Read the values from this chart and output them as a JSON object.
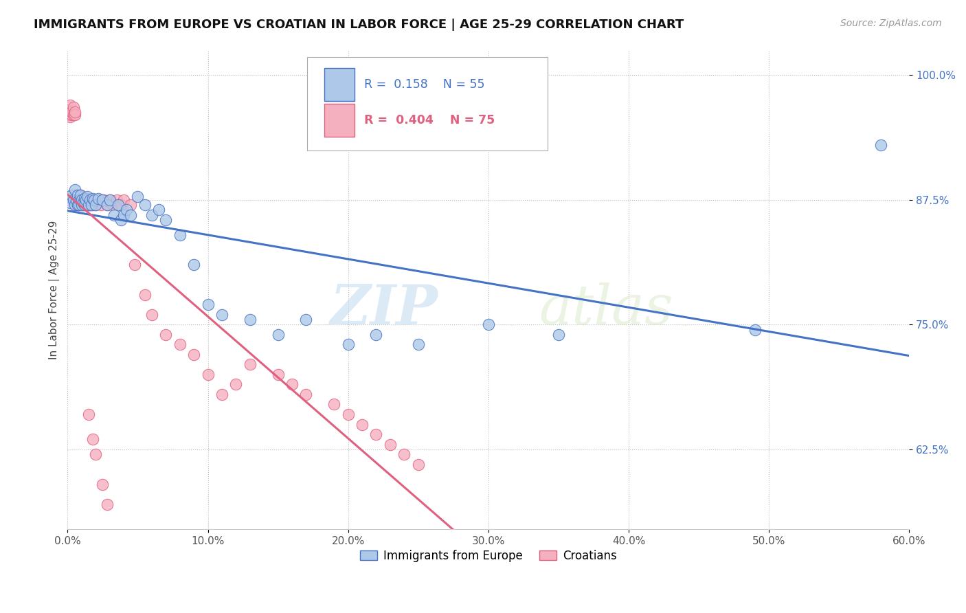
{
  "title": "IMMIGRANTS FROM EUROPE VS CROATIAN IN LABOR FORCE | AGE 25-29 CORRELATION CHART",
  "source": "Source: ZipAtlas.com",
  "ylabel": "In Labor Force | Age 25-29",
  "legend_blue_label": "Immigrants from Europe",
  "legend_pink_label": "Croatians",
  "legend_blue_r": "0.158",
  "legend_blue_n": "55",
  "legend_pink_r": "0.404",
  "legend_pink_n": "75",
  "blue_color": "#adc8e8",
  "pink_color": "#f5b0c0",
  "blue_line_color": "#4472c4",
  "pink_line_color": "#e06080",
  "watermark_zip": "ZIP",
  "watermark_atlas": "atlas",
  "xmin": 0.0,
  "xmax": 0.6,
  "ymin": 0.545,
  "ymax": 1.025,
  "ytick_vals": [
    0.625,
    0.75,
    0.875,
    1.0
  ],
  "ytick_labels": [
    "62.5%",
    "75.0%",
    "87.5%",
    "100.0%"
  ],
  "xtick_vals": [
    0.0,
    0.1,
    0.2,
    0.3,
    0.4,
    0.5,
    0.6
  ],
  "xtick_labels": [
    "0.0%",
    "10.0%",
    "20.0%",
    "30.0%",
    "40.0%",
    "50.0%",
    "60.0%"
  ],
  "blue_scatter_x": [
    0.001,
    0.002,
    0.003,
    0.004,
    0.005,
    0.005,
    0.006,
    0.007,
    0.007,
    0.008,
    0.008,
    0.009,
    0.009,
    0.01,
    0.01,
    0.011,
    0.012,
    0.012,
    0.013,
    0.014,
    0.015,
    0.016,
    0.017,
    0.018,
    0.019,
    0.02,
    0.022,
    0.025,
    0.028,
    0.03,
    0.033,
    0.036,
    0.038,
    0.04,
    0.042,
    0.045,
    0.05,
    0.055,
    0.06,
    0.065,
    0.07,
    0.08,
    0.09,
    0.1,
    0.11,
    0.13,
    0.15,
    0.17,
    0.2,
    0.22,
    0.25,
    0.3,
    0.35,
    0.49,
    0.58
  ],
  "blue_scatter_y": [
    0.878,
    0.872,
    0.88,
    0.875,
    0.87,
    0.885,
    0.875,
    0.87,
    0.88,
    0.875,
    0.87,
    0.875,
    0.88,
    0.87,
    0.875,
    0.872,
    0.876,
    0.87,
    0.875,
    0.878,
    0.87,
    0.875,
    0.87,
    0.876,
    0.875,
    0.87,
    0.876,
    0.875,
    0.87,
    0.875,
    0.86,
    0.87,
    0.855,
    0.86,
    0.865,
    0.86,
    0.878,
    0.87,
    0.86,
    0.865,
    0.855,
    0.84,
    0.81,
    0.77,
    0.76,
    0.755,
    0.74,
    0.755,
    0.73,
    0.74,
    0.73,
    0.75,
    0.74,
    0.745,
    0.93
  ],
  "pink_scatter_x": [
    0.001,
    0.001,
    0.002,
    0.002,
    0.003,
    0.003,
    0.004,
    0.004,
    0.005,
    0.005,
    0.005,
    0.006,
    0.006,
    0.007,
    0.007,
    0.007,
    0.008,
    0.008,
    0.009,
    0.009,
    0.01,
    0.01,
    0.01,
    0.011,
    0.011,
    0.012,
    0.012,
    0.013,
    0.013,
    0.014,
    0.014,
    0.015,
    0.015,
    0.016,
    0.016,
    0.017,
    0.018,
    0.019,
    0.02,
    0.021,
    0.022,
    0.024,
    0.026,
    0.028,
    0.03,
    0.032,
    0.035,
    0.038,
    0.04,
    0.045,
    0.048,
    0.055,
    0.06,
    0.07,
    0.08,
    0.09,
    0.1,
    0.11,
    0.12,
    0.13,
    0.15,
    0.16,
    0.17,
    0.19,
    0.2,
    0.21,
    0.22,
    0.23,
    0.24,
    0.25,
    0.015,
    0.018,
    0.02,
    0.025,
    0.028
  ],
  "pink_scatter_y": [
    0.96,
    0.965,
    0.958,
    0.97,
    0.96,
    0.963,
    0.968,
    0.96,
    0.96,
    0.963,
    0.87,
    0.875,
    0.88,
    0.875,
    0.87,
    0.875,
    0.875,
    0.87,
    0.875,
    0.88,
    0.878,
    0.87,
    0.876,
    0.875,
    0.87,
    0.876,
    0.87,
    0.875,
    0.87,
    0.876,
    0.87,
    0.875,
    0.87,
    0.875,
    0.87,
    0.875,
    0.87,
    0.875,
    0.87,
    0.875,
    0.875,
    0.87,
    0.875,
    0.87,
    0.875,
    0.87,
    0.875,
    0.87,
    0.875,
    0.87,
    0.81,
    0.78,
    0.76,
    0.74,
    0.73,
    0.72,
    0.7,
    0.68,
    0.69,
    0.71,
    0.7,
    0.69,
    0.68,
    0.67,
    0.66,
    0.65,
    0.64,
    0.63,
    0.62,
    0.61,
    0.66,
    0.635,
    0.62,
    0.59,
    0.57
  ]
}
